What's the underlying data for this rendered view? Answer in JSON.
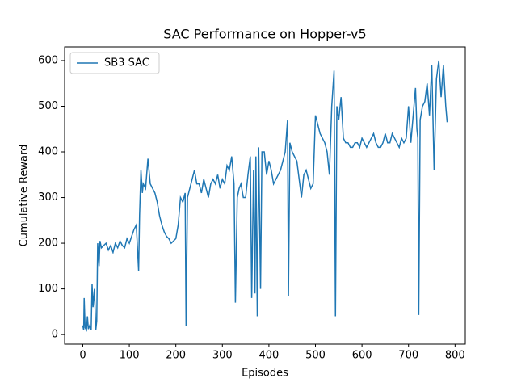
{
  "chart_data": {
    "type": "line",
    "title": "SAC Performance on Hopper-v5",
    "x_label": "Episodes",
    "y_label": "Cumulative Reward",
    "x": [
      0,
      2,
      3,
      5,
      8,
      10,
      12,
      15,
      18,
      20,
      22,
      25,
      28,
      30,
      32,
      35,
      37,
      40,
      45,
      50,
      55,
      60,
      65,
      70,
      75,
      80,
      85,
      90,
      95,
      100,
      105,
      110,
      115,
      120,
      122,
      125,
      128,
      130,
      135,
      140,
      145,
      150,
      155,
      160,
      165,
      170,
      175,
      180,
      185,
      190,
      195,
      200,
      205,
      210,
      215,
      220,
      222,
      225,
      230,
      235,
      240,
      245,
      250,
      255,
      260,
      265,
      270,
      275,
      280,
      285,
      290,
      295,
      300,
      305,
      310,
      315,
      320,
      325,
      328,
      332,
      336,
      340,
      345,
      350,
      355,
      360,
      363,
      367,
      370,
      372,
      375,
      378,
      382,
      385,
      390,
      395,
      400,
      405,
      410,
      415,
      420,
      425,
      430,
      435,
      440,
      442,
      445,
      450,
      455,
      460,
      465,
      470,
      475,
      480,
      485,
      490,
      495,
      500,
      505,
      510,
      515,
      520,
      525,
      530,
      535,
      540,
      543,
      546,
      550,
      555,
      560,
      565,
      570,
      575,
      580,
      585,
      590,
      595,
      600,
      605,
      610,
      615,
      620,
      625,
      630,
      635,
      640,
      645,
      650,
      655,
      660,
      665,
      670,
      675,
      680,
      685,
      690,
      695,
      700,
      705,
      710,
      715,
      718,
      720,
      722,
      725,
      730,
      735,
      740,
      745,
      750,
      755,
      760,
      765,
      770,
      775,
      780,
      783
    ],
    "series": [
      {
        "name": "SB3 SAC",
        "color": "#1f77b4",
        "values": [
          20,
          10,
          80,
          15,
          10,
          40,
          12,
          20,
          10,
          110,
          60,
          100,
          10,
          30,
          200,
          150,
          205,
          190,
          195,
          200,
          185,
          195,
          180,
          200,
          190,
          205,
          195,
          190,
          210,
          200,
          215,
          230,
          240,
          140,
          260,
          360,
          310,
          330,
          320,
          385,
          330,
          320,
          310,
          290,
          260,
          240,
          225,
          215,
          210,
          200,
          205,
          210,
          240,
          300,
          290,
          310,
          18,
          300,
          320,
          340,
          360,
          330,
          330,
          310,
          340,
          320,
          300,
          330,
          340,
          330,
          350,
          320,
          340,
          330,
          370,
          360,
          390,
          330,
          70,
          300,
          320,
          330,
          300,
          300,
          350,
          390,
          80,
          360,
          90,
          390,
          40,
          410,
          100,
          400,
          400,
          350,
          380,
          360,
          330,
          340,
          350,
          360,
          380,
          400,
          470,
          85,
          420,
          400,
          390,
          380,
          340,
          300,
          350,
          360,
          340,
          320,
          330,
          480,
          460,
          440,
          430,
          420,
          400,
          350,
          500,
          578,
          40,
          500,
          470,
          520,
          430,
          420,
          420,
          410,
          410,
          420,
          420,
          410,
          430,
          420,
          410,
          420,
          430,
          440,
          420,
          410,
          410,
          420,
          440,
          420,
          420,
          440,
          430,
          420,
          410,
          430,
          420,
          430,
          500,
          420,
          480,
          540,
          450,
          430,
          43,
          470,
          500,
          510,
          550,
          480,
          590,
          360,
          560,
          600,
          520,
          590,
          500,
          465
        ]
      }
    ],
    "xlim": [
      -39,
      822
    ],
    "ylim": [
      -21,
      630
    ],
    "xticks": [
      0,
      100,
      200,
      300,
      400,
      500,
      600,
      700,
      800
    ],
    "yticks": [
      0,
      100,
      200,
      300,
      400,
      500,
      600
    ],
    "legend": "upper left"
  }
}
